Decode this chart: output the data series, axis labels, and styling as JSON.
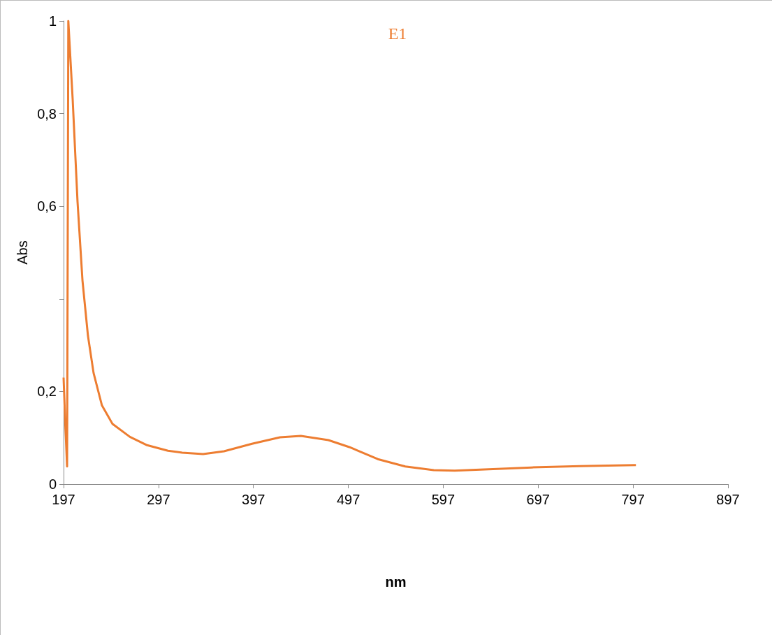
{
  "chart_data": {
    "type": "line",
    "title": "E1",
    "xlabel": "nm",
    "ylabel": "Abs",
    "x": [
      197,
      199,
      200.7,
      202,
      206.6,
      211.7,
      216.9,
      222.7,
      228.6,
      237.4,
      248.5,
      266.9,
      285,
      307,
      322,
      344,
      366,
      395.5,
      425,
      447,
      476,
      498,
      528,
      557,
      587,
      609,
      645,
      690,
      741,
      800
    ],
    "series": [
      {
        "color": "#ed7d31",
        "values": [
          0.23,
          0.12,
          0.038,
          1.0,
          0.83,
          0.61,
          0.44,
          0.32,
          0.24,
          0.17,
          0.13,
          0.102,
          0.084,
          0.072,
          0.068,
          0.065,
          0.071,
          0.087,
          0.101,
          0.104,
          0.095,
          0.08,
          0.054,
          0.038,
          0.03,
          0.029,
          0.032,
          0.036,
          0.039,
          0.041
        ]
      }
    ],
    "xlim": [
      197,
      897
    ],
    "xticks": [
      197,
      297,
      397,
      497,
      597,
      697,
      797,
      897
    ],
    "ylim": [
      0,
      1
    ],
    "yticks": [
      {
        "value": 0,
        "label": "0"
      },
      {
        "value": 0.2,
        "label": "0,2"
      },
      {
        "value": 0.4,
        "label": null
      },
      {
        "value": 0.6,
        "label": "0,6"
      },
      {
        "value": 0.8,
        "label": "0,8"
      },
      {
        "value": 1,
        "label": "1"
      }
    ],
    "grid": false,
    "marker": "none",
    "line_style": "solid"
  }
}
